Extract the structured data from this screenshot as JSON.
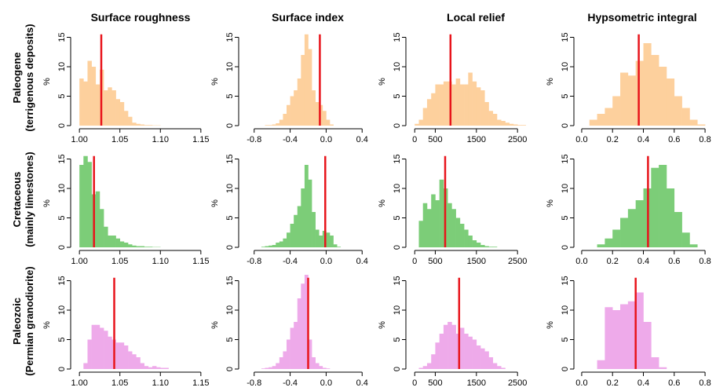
{
  "column_titles": [
    "Surface roughness",
    "Surface index",
    "Local relief",
    "Hypsometric integral"
  ],
  "row_titles": [
    [
      "Paleogene",
      "(terrigenous deposits)"
    ],
    [
      "Cretaceous",
      "(mainly limestones)"
    ],
    [
      "Paleozoic",
      "(Permian granodiorite)"
    ]
  ],
  "row_colors": [
    "#fdd09d",
    "#7ccd78",
    "#eeaaea"
  ],
  "marker_color": "#e8141b",
  "chart_data": [
    {
      "type": "bar",
      "panel": "Paleogene / Surface roughness",
      "ylabel": "%",
      "ylim": [
        0,
        16
      ],
      "yticks": [
        0,
        5,
        10,
        15
      ],
      "xlim": [
        0.995,
        1.155
      ],
      "xticks": [
        1.0,
        1.05,
        1.1,
        1.15
      ],
      "xtick_labels": [
        "1.00",
        "1.05",
        "1.10",
        "1.15"
      ],
      "bin_start": 1.0,
      "bin_width": 0.005,
      "values": [
        8,
        7.5,
        11,
        10,
        7,
        9.5,
        6,
        6.5,
        6,
        4.5,
        4,
        2.5,
        1.5,
        0.5,
        0.3,
        0.2,
        0.1,
        0.1,
        0.05,
        0.05
      ],
      "marker": 1.027,
      "color": "#fdd09d"
    },
    {
      "type": "bar",
      "panel": "Paleogene / Surface index",
      "ylabel": "%",
      "ylim": [
        0,
        16
      ],
      "yticks": [
        0,
        5,
        10,
        15
      ],
      "xlim": [
        -0.92,
        0.52
      ],
      "xticks": [
        -0.8,
        -0.4,
        0.0,
        0.4
      ],
      "xtick_labels": [
        "-0.8",
        "-0.4",
        "0.0",
        "0.4"
      ],
      "bin_start": -0.8,
      "bin_width": 0.04,
      "values": [
        0,
        0,
        0,
        0.1,
        0.1,
        0.2,
        0.4,
        1,
        2,
        3.5,
        5,
        6,
        8,
        12,
        15.5,
        13,
        6,
        4,
        3.5,
        2.5,
        1,
        0.2
      ],
      "marker": -0.07,
      "color": "#fdd09d"
    },
    {
      "type": "bar",
      "panel": "Paleogene / Local relief",
      "ylabel": "%",
      "ylim": [
        0,
        16
      ],
      "yticks": [
        0,
        5,
        10,
        15
      ],
      "xlim": [
        -100,
        3050
      ],
      "xticks": [
        0,
        500,
        1500,
        2500
      ],
      "xtick_labels": [
        "0",
        "500",
        "1500",
        "2500"
      ],
      "bin_start": 0,
      "bin_width": 100,
      "values": [
        0.3,
        1,
        3,
        4.5,
        5.5,
        7,
        7,
        7.5,
        7.5,
        7,
        8,
        7,
        7,
        9,
        7.5,
        6.5,
        6,
        4,
        2.5,
        2,
        1,
        0.8,
        0.5,
        0.3,
        0.2,
        0.1,
        0.1
      ],
      "marker": 870,
      "color": "#fdd09d"
    },
    {
      "type": "bar",
      "panel": "Paleogene / Hypsometric integral",
      "ylabel": "%",
      "ylim": [
        0,
        16
      ],
      "yticks": [
        0,
        5,
        10,
        15
      ],
      "xlim": [
        -0.02,
        0.82
      ],
      "xticks": [
        0.0,
        0.2,
        0.4,
        0.6,
        0.8
      ],
      "xtick_labels": [
        "0.0",
        "0.2",
        "0.4",
        "0.6",
        "0.8"
      ],
      "bin_start": 0.05,
      "bin_width": 0.05,
      "values": [
        1,
        2,
        3,
        5,
        9,
        8.5,
        11,
        14,
        12,
        10,
        8,
        5,
        3,
        1,
        0.2
      ],
      "marker": 0.37,
      "color": "#fdd09d"
    },
    {
      "type": "bar",
      "panel": "Cretaceous / Surface roughness",
      "ylabel": "%",
      "ylim": [
        0,
        16
      ],
      "yticks": [
        0,
        5,
        10,
        15
      ],
      "xlim": [
        0.995,
        1.155
      ],
      "xticks": [
        1.0,
        1.05,
        1.1,
        1.15
      ],
      "xtick_labels": [
        "1.00",
        "1.05",
        "1.10",
        "1.15"
      ],
      "bin_start": 1.0,
      "bin_width": 0.005,
      "values": [
        14,
        15.5,
        14.5,
        9,
        9.5,
        6.5,
        3.5,
        2,
        2,
        1.5,
        1,
        0.8,
        0.5,
        0.3,
        0.2,
        0.2,
        0.1,
        0.1,
        0.05,
        0.05
      ],
      "marker": 1.018,
      "color": "#7ccd78"
    },
    {
      "type": "bar",
      "panel": "Cretaceous / Surface index",
      "ylabel": "%",
      "ylim": [
        0,
        16
      ],
      "yticks": [
        0,
        5,
        10,
        15
      ],
      "xlim": [
        -0.92,
        0.52
      ],
      "xticks": [
        -0.8,
        -0.4,
        0.0,
        0.4
      ],
      "xtick_labels": [
        "-0.8",
        "-0.4",
        "0.0",
        "0.4"
      ],
      "bin_start": -0.72,
      "bin_width": 0.04,
      "values": [
        0.1,
        0.2,
        0.3,
        0.4,
        0.8,
        1,
        1.5,
        2.5,
        4,
        5.5,
        7,
        10,
        14,
        11.5,
        6,
        3,
        2,
        2.8,
        2.5,
        2,
        0.5,
        0.1
      ],
      "marker": -0.01,
      "color": "#7ccd78"
    },
    {
      "type": "bar",
      "panel": "Cretaceous / Local relief",
      "ylabel": "%",
      "ylim": [
        0,
        16
      ],
      "yticks": [
        0,
        5,
        10,
        15
      ],
      "xlim": [
        -100,
        3050
      ],
      "xticks": [
        0,
        500,
        1500,
        2500
      ],
      "xtick_labels": [
        "0",
        "500",
        "1500",
        "2500"
      ],
      "bin_start": 100,
      "bin_width": 100,
      "values": [
        4.5,
        7.5,
        6.5,
        9,
        8,
        11.5,
        10,
        7.5,
        6.5,
        5,
        4,
        3,
        2,
        1.2,
        0.8,
        0.4,
        0.2,
        0.1,
        0.1
      ],
      "marker": 740,
      "color": "#7ccd78"
    },
    {
      "type": "bar",
      "panel": "Cretaceous / Hypsometric integral",
      "ylabel": "%",
      "ylim": [
        0,
        16
      ],
      "yticks": [
        0,
        5,
        10,
        15
      ],
      "xlim": [
        -0.02,
        0.82
      ],
      "xticks": [
        0.0,
        0.2,
        0.4,
        0.6,
        0.8
      ],
      "xtick_labels": [
        "0.0",
        "0.2",
        "0.4",
        "0.6",
        "0.8"
      ],
      "bin_start": 0.1,
      "bin_width": 0.05,
      "values": [
        0.5,
        1.5,
        3,
        5,
        6.5,
        8,
        10,
        13.5,
        14,
        10,
        6,
        2.5,
        0.5
      ],
      "marker": 0.43,
      "color": "#7ccd78"
    },
    {
      "type": "bar",
      "panel": "Paleozoic / Surface roughness",
      "ylabel": "%",
      "ylim": [
        0,
        16
      ],
      "yticks": [
        0,
        5,
        10,
        15
      ],
      "xlim": [
        0.995,
        1.155
      ],
      "xticks": [
        1.0,
        1.05,
        1.1,
        1.15
      ],
      "xtick_labels": [
        "1.00",
        "1.05",
        "1.10",
        "1.15"
      ],
      "bin_start": 1.005,
      "bin_width": 0.005,
      "values": [
        1,
        5,
        7.5,
        7.5,
        7,
        6.5,
        5.5,
        5,
        4.5,
        4.5,
        4,
        3,
        2.5,
        2,
        1,
        0.5,
        0.3,
        0.5,
        0.3,
        0.2,
        0.2
      ],
      "marker": 1.043,
      "color": "#eeaaea"
    },
    {
      "type": "bar",
      "panel": "Paleozoic / Surface index",
      "ylabel": "%",
      "ylim": [
        0,
        16
      ],
      "yticks": [
        0,
        5,
        10,
        15
      ],
      "xlim": [
        -0.92,
        0.52
      ],
      "xticks": [
        -0.8,
        -0.4,
        0.0,
        0.4
      ],
      "xtick_labels": [
        "-0.8",
        "-0.4",
        "0.0",
        "0.4"
      ],
      "bin_start": -0.72,
      "bin_width": 0.04,
      "values": [
        0.1,
        0.2,
        0.3,
        0.5,
        1,
        2,
        3,
        5,
        7,
        8,
        12,
        14.5,
        16,
        5,
        2,
        1,
        0.5,
        0.2,
        0.1
      ],
      "marker": -0.2,
      "color": "#eeaaea"
    },
    {
      "type": "bar",
      "panel": "Paleozoic / Local relief",
      "ylabel": "%",
      "ylim": [
        0,
        16
      ],
      "yticks": [
        0,
        5,
        10,
        15
      ],
      "xlim": [
        -100,
        3050
      ],
      "xticks": [
        0,
        500,
        1500,
        2500
      ],
      "xtick_labels": [
        "0",
        "500",
        "1500",
        "2500"
      ],
      "bin_start": 100,
      "bin_width": 100,
      "values": [
        0.2,
        0.5,
        1,
        2.5,
        4.5,
        6,
        7.5,
        8,
        7.5,
        6,
        7,
        6,
        5.5,
        5,
        4,
        3.5,
        3,
        2,
        1,
        0.5,
        0.2
      ],
      "marker": 1080,
      "color": "#eeaaea"
    },
    {
      "type": "bar",
      "panel": "Paleozoic / Hypsometric integral",
      "ylabel": "%",
      "ylim": [
        0,
        16
      ],
      "yticks": [
        0,
        5,
        10,
        15
      ],
      "xlim": [
        -0.02,
        0.82
      ],
      "xticks": [
        0.0,
        0.2,
        0.4,
        0.6,
        0.8
      ],
      "xtick_labels": [
        "0.0",
        "0.2",
        "0.4",
        "0.6",
        "0.8"
      ],
      "bin_start": 0.1,
      "bin_width": 0.05,
      "values": [
        1.5,
        10.5,
        10,
        11,
        11.5,
        13,
        8,
        2,
        0.3
      ],
      "marker": 0.35,
      "color": "#eeaaea"
    }
  ]
}
